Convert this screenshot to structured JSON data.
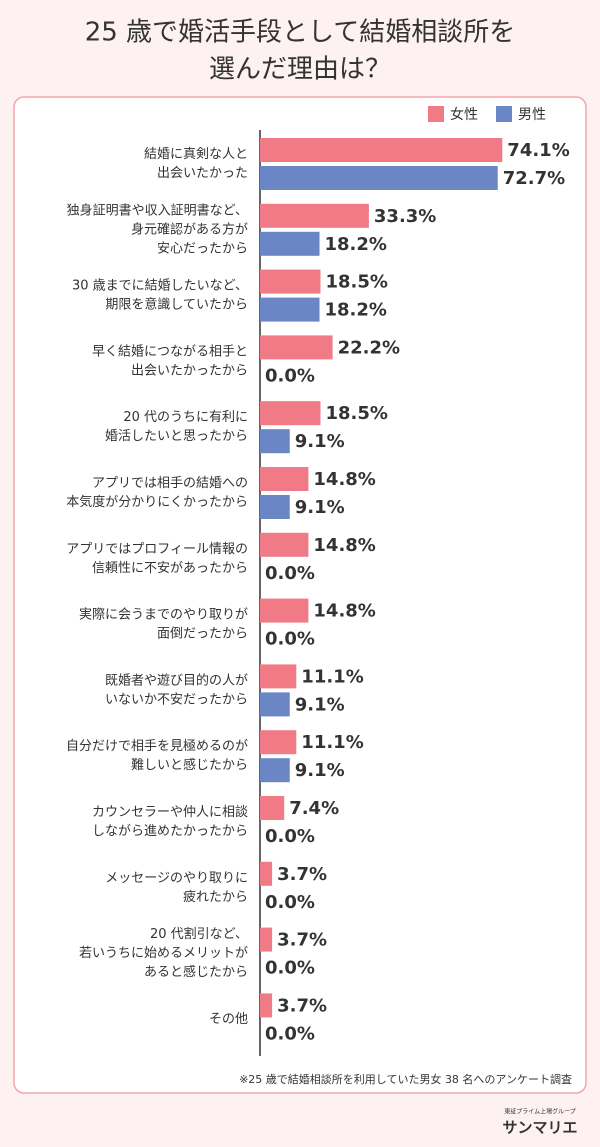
{
  "chart_data": {
    "type": "bar",
    "orientation": "horizontal",
    "title": [
      "25 歳で婚活手段として結婚相談所を",
      "選んだ理由は？"
    ],
    "categories": [
      [
        "結婚に真剣な人と",
        "出会いたかった"
      ],
      [
        "独身証明書や収入証明書など、",
        "身元確認がある方が",
        "安心だったから"
      ],
      [
        "30 歳までに結婚したいなど、",
        "期限を意識していたから"
      ],
      [
        "早く結婚につながる相手と",
        "出会いたかったから"
      ],
      [
        "20 代のうちに有利に",
        "婚活したいと思ったから"
      ],
      [
        "アプリでは相手の結婚への",
        "本気度が分かりにくかったから"
      ],
      [
        "アプリではプロフィール情報の",
        "信頼性に不安があったから"
      ],
      [
        "実際に会うまでのやり取りが",
        "面倒だったから"
      ],
      [
        "既婚者や遊び目的の人が",
        "いないか不安だったから"
      ],
      [
        "自分だけで相手を見極めるのが",
        "難しいと感じたから"
      ],
      [
        "カウンセラーや仲人に相談",
        "しながら進めたかったから"
      ],
      [
        "メッセージのやり取りに",
        "疲れたから"
      ],
      [
        "20 代割引など、",
        "若いうちに始めるメリットが",
        "あると感じたから"
      ],
      [
        "その他"
      ]
    ],
    "series": [
      {
        "name": "女性",
        "color": "#f07a86",
        "values": [
          74.1,
          33.3,
          18.5,
          22.2,
          18.5,
          14.8,
          14.8,
          14.8,
          11.1,
          11.1,
          7.4,
          3.7,
          3.7,
          3.7
        ],
        "value_labels": [
          "74.1%",
          "33.3%",
          "18.5%",
          "22.2%",
          "18.5%",
          "14.8%",
          "14.8%",
          "14.8%",
          "11.1%",
          "11.1%",
          "7.4%",
          "3.7%",
          "3.7%",
          "3.7%"
        ]
      },
      {
        "name": "男性",
        "color": "#6b86c4",
        "values": [
          72.7,
          18.2,
          18.2,
          0.0,
          9.1,
          9.1,
          0.0,
          0.0,
          9.1,
          9.1,
          0.0,
          0.0,
          0.0,
          0.0
        ],
        "value_labels": [
          "72.7%",
          "18.2%",
          "18.2%",
          "0.0%",
          "9.1%",
          "9.1%",
          "0.0%",
          "0.0%",
          "9.1%",
          "9.1%",
          "0.0%",
          "0.0%",
          "0.0%",
          "0.0%"
        ]
      }
    ],
    "legend": "top-right",
    "note": "※25 歳で結婚相談所を利用していた男女 38 名へのアンケート調査"
  },
  "footer": {
    "tagline": "東証プライム上場グループ",
    "brand": "サンマリエ"
  }
}
